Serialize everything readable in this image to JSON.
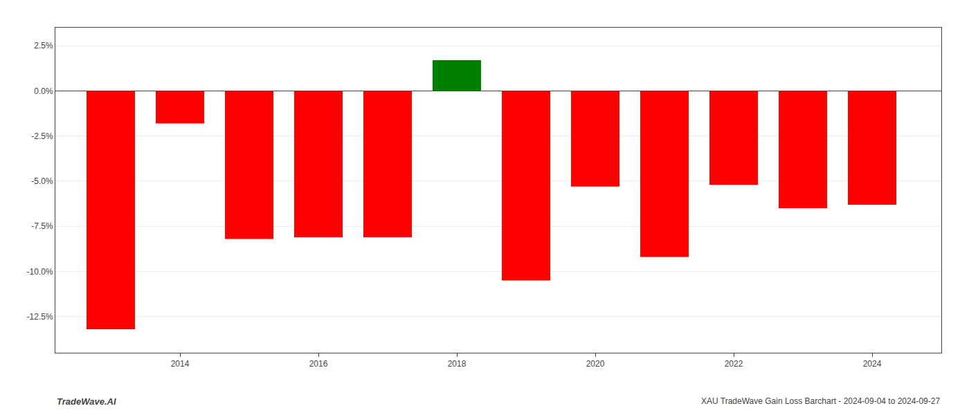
{
  "chart_data": {
    "type": "bar",
    "x": [
      2013,
      2014,
      2015,
      2016,
      2017,
      2018,
      2019,
      2020,
      2021,
      2022,
      2023,
      2024
    ],
    "values": [
      -13.2,
      -1.8,
      -8.2,
      -8.1,
      -8.1,
      1.7,
      -10.5,
      -5.3,
      -9.2,
      -5.2,
      -6.5,
      -6.3
    ],
    "colors": [
      "#ff0000",
      "#ff0000",
      "#ff0000",
      "#ff0000",
      "#ff0000",
      "#008000",
      "#ff0000",
      "#ff0000",
      "#ff0000",
      "#ff0000",
      "#ff0000",
      "#ff0000"
    ],
    "xlim": [
      2012.2,
      2025.0
    ],
    "xticks": [
      2014,
      2016,
      2018,
      2020,
      2022,
      2024
    ],
    "ylim": [
      -14.5,
      3.5
    ],
    "yticks": [
      {
        "value": -12.5,
        "label": "-12.5%"
      },
      {
        "value": -10.0,
        "label": "-10.0%"
      },
      {
        "value": -7.5,
        "label": "-7.5%"
      },
      {
        "value": -5.0,
        "label": "-5.0%"
      },
      {
        "value": -2.5,
        "label": "-2.5%"
      },
      {
        "value": 0.0,
        "label": "0.0%"
      },
      {
        "value": 2.5,
        "label": "2.5%"
      }
    ],
    "grid": true,
    "annotations": [
      {
        "text": "TradeWave.AI"
      },
      {
        "text": "XAU TradeWave Gain Loss Barchart - 2024-09-04 to 2024-09-27"
      }
    ]
  }
}
